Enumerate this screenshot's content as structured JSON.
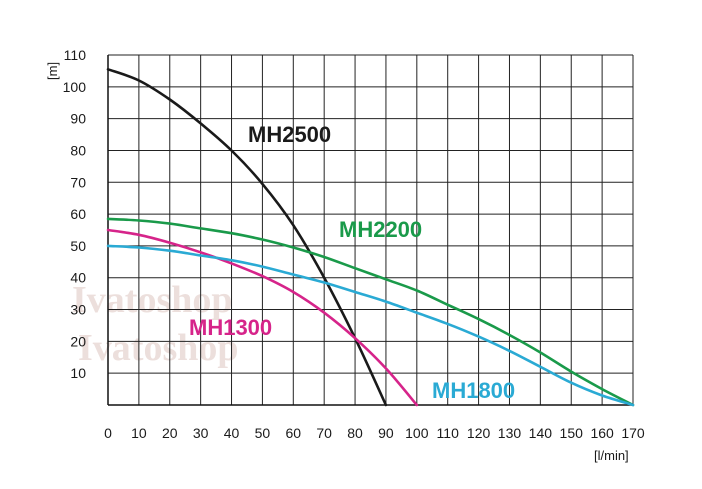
{
  "chart_data": {
    "type": "line",
    "title": "",
    "xlabel": "[l/min]",
    "ylabel": "[m]",
    "xlim": [
      0,
      170
    ],
    "ylim": [
      0,
      110
    ],
    "x_ticks": [
      0,
      10,
      20,
      30,
      40,
      50,
      60,
      70,
      80,
      90,
      100,
      110,
      120,
      130,
      140,
      150,
      160,
      170
    ],
    "y_ticks": [
      10,
      20,
      30,
      40,
      50,
      60,
      70,
      80,
      90,
      100,
      110
    ],
    "grid": true,
    "watermark": [
      "Ivatoshop",
      "Ivatoshop"
    ],
    "series": [
      {
        "name": "MH2500",
        "color": "#1a1a1a",
        "x": [
          0,
          10,
          20,
          30,
          40,
          50,
          60,
          70,
          80,
          90
        ],
        "y": [
          105.5,
          102,
          96,
          88.5,
          80,
          69.5,
          56.5,
          40,
          21,
          0
        ]
      },
      {
        "name": "MH2200",
        "color": "#1a9a4a",
        "x": [
          0,
          10,
          20,
          30,
          40,
          50,
          60,
          70,
          80,
          90,
          100,
          110,
          120,
          130,
          140,
          150,
          160,
          170
        ],
        "y": [
          58.5,
          58,
          57,
          55.5,
          54,
          52,
          49.5,
          46.5,
          43,
          39.5,
          36,
          31.5,
          27,
          22,
          16.5,
          10.5,
          5,
          0
        ]
      },
      {
        "name": "MH1300",
        "color": "#d6248a",
        "x": [
          0,
          10,
          20,
          30,
          40,
          50,
          60,
          70,
          80,
          90,
          100
        ],
        "y": [
          55,
          53.5,
          51,
          48,
          44.5,
          40.5,
          35.5,
          29,
          21,
          11.5,
          0
        ]
      },
      {
        "name": "MH1800",
        "color": "#2aaad4",
        "x": [
          0,
          10,
          20,
          30,
          40,
          50,
          60,
          70,
          80,
          90,
          100,
          110,
          120,
          130,
          140,
          150,
          160,
          170
        ],
        "y": [
          50,
          49.5,
          48.5,
          47,
          45.5,
          43.5,
          41,
          38.5,
          35.5,
          32.5,
          29,
          25.5,
          21.5,
          17,
          12,
          7,
          3,
          0
        ]
      }
    ]
  }
}
